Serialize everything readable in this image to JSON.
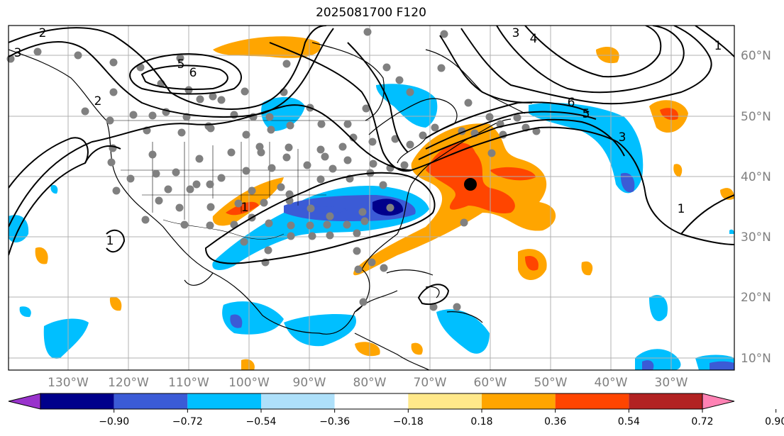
{
  "title": "2025081700 F120",
  "lon_labels": [
    "130°W",
    "120°W",
    "110°W",
    "100°W",
    "90°W",
    "80°W",
    "70°W",
    "60°W",
    "50°W",
    "40°W",
    "30°W"
  ],
  "lat_labels": [
    "60°N",
    "50°N",
    "40°N",
    "30°N",
    "20°N",
    "10°N"
  ],
  "colorbar": {
    "ticks": [
      "−0.90",
      "−0.72",
      "−0.54",
      "−0.36",
      "−0.18",
      "0.18",
      "0.36",
      "0.54",
      "0.72",
      "0.90"
    ],
    "colors": [
      "#9933cc",
      "#00008b",
      "#3b5bd6",
      "#00bfff",
      "#aee0fa",
      "#ffffff",
      "#ffe88a",
      "#ffa500",
      "#ff4500",
      "#b22222",
      "#ff82b4"
    ]
  },
  "contour_labels": [
    "2",
    "3",
    "5",
    "6",
    "2",
    "6",
    "5",
    "3",
    "3",
    "4",
    "1",
    "1",
    "1",
    "1"
  ],
  "marker": "storm-center-dot"
}
